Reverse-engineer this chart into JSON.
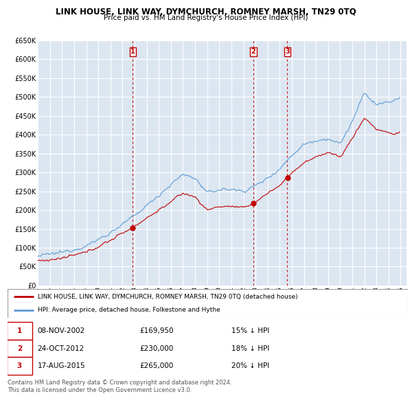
{
  "title": "LINK HOUSE, LINK WAY, DYMCHURCH, ROMNEY MARSH, TN29 0TQ",
  "subtitle": "Price paid vs. HM Land Registry's House Price Index (HPI)",
  "ylabel_ticks": [
    "£0",
    "£50K",
    "£100K",
    "£150K",
    "£200K",
    "£250K",
    "£300K",
    "£350K",
    "£400K",
    "£450K",
    "£500K",
    "£550K",
    "£600K",
    "£650K"
  ],
  "ytick_values": [
    0,
    50000,
    100000,
    150000,
    200000,
    250000,
    300000,
    350000,
    400000,
    450000,
    500000,
    550000,
    600000,
    650000
  ],
  "ylim": [
    0,
    650000
  ],
  "xlim_start": 1995.0,
  "xlim_end": 2025.5,
  "transactions": [
    {
      "num": 1,
      "date": "08-NOV-2002",
      "price": 169950,
      "year": 2002.85,
      "pct": "15%",
      "dir": "↓"
    },
    {
      "num": 2,
      "date": "24-OCT-2012",
      "price": 230000,
      "year": 2012.81,
      "pct": "18%",
      "dir": "↓"
    },
    {
      "num": 3,
      "date": "17-AUG-2015",
      "price": 265000,
      "year": 2015.63,
      "pct": "20%",
      "dir": "↓"
    }
  ],
  "legend_line1": "LINK HOUSE, LINK WAY, DYMCHURCH, ROMNEY MARSH, TN29 0TQ (detached house)",
  "legend_line2": "HPI: Average price, detached house, Folkestone and Hythe",
  "footer": "Contains HM Land Registry data © Crown copyright and database right 2024.\nThis data is licensed under the Open Government Licence v3.0.",
  "hpi_color": "#5b9bd5",
  "price_color": "#c00000",
  "vline_color": "#c00000",
  "bg_color": "#dce6f1",
  "grid_color": "#ffffff",
  "xticks": [
    1995,
    1996,
    1997,
    1998,
    1999,
    2000,
    2001,
    2002,
    2003,
    2004,
    2005,
    2006,
    2007,
    2008,
    2009,
    2010,
    2011,
    2012,
    2013,
    2014,
    2015,
    2016,
    2017,
    2018,
    2019,
    2020,
    2021,
    2022,
    2023,
    2024,
    2025
  ]
}
